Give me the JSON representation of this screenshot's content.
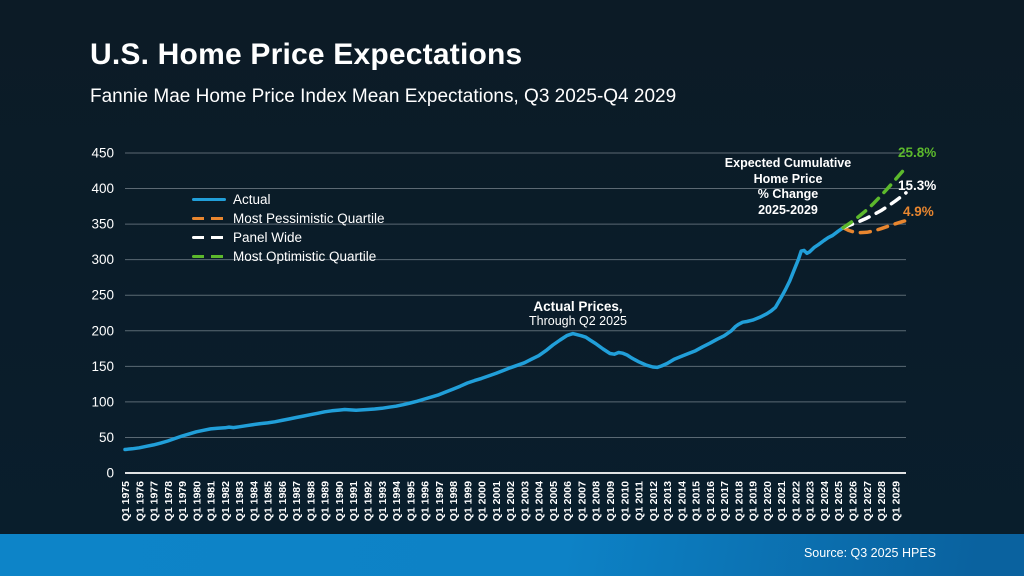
{
  "slide": {
    "title": "U.S. Home Price Expectations",
    "subtitle": "Fannie Mae Home Price Index Mean Expectations, Q3 2025-Q4 2029",
    "source": "Source: Q3 2025 HPES"
  },
  "colors": {
    "background_top": "#0c1b26",
    "background_bottom": "#091e2d",
    "footer_blue_left": "#0d84c8",
    "footer_blue_right": "#0a629f",
    "actual": "#219fd9",
    "pessimistic": "#e8862f",
    "panel": "#ffffff",
    "optimistic": "#5cb92c",
    "gridline": "rgba(190,200,206,0.45)",
    "axis_line": "#ffffff",
    "text": "#ffffff"
  },
  "chart_data": {
    "type": "line",
    "title": "U.S. Home Price Expectations",
    "subtitle": "Fannie Mae Home Price Index Mean Expectations, Q3 2025-Q4 2029",
    "xlabel": "",
    "ylabel": "",
    "ylim": [
      0,
      450
    ],
    "grid": true,
    "legend_position": "upper-left",
    "y_ticks": [
      0,
      50,
      100,
      150,
      200,
      250,
      300,
      350,
      400,
      450
    ],
    "x_ticks": [
      "Q1 1975",
      "Q1 1976",
      "Q1 1977",
      "Q1 1978",
      "Q1 1979",
      "Q1 1980",
      "Q1 1981",
      "Q1 1982",
      "Q1 1983",
      "Q1 1984",
      "Q1 1985",
      "Q1 1986",
      "Q1 1987",
      "Q1 1988",
      "Q1 1989",
      "Q1 1990",
      "Q1 1991",
      "Q1 1992",
      "Q1 1993",
      "Q1 1994",
      "Q1 1995",
      "Q1 1996",
      "Q1 1997",
      "Q1 1998",
      "Q1 1999",
      "Q1 2000",
      "Q1 2001",
      "Q1 2002",
      "Q1 2003",
      "Q1 2004",
      "Q1 2005",
      "Q1 2006",
      "Q1 2007",
      "Q1 2008",
      "Q1 2009",
      "Q1 2010",
      "Q1 2011",
      "Q1 2012",
      "Q1 2013",
      "Q1 2014",
      "Q1 2015",
      "Q1 2016",
      "Q1 2017",
      "Q1 2018",
      "Q1 2019",
      "Q1 2020",
      "Q1 2021",
      "Q1 2022",
      "Q1 2023",
      "Q1 2024",
      "Q1 2025",
      "Q1 2026",
      "Q1 2027",
      "Q1 2028",
      "Q1 2029"
    ],
    "x_start_year": 1975,
    "series": [
      {
        "name": "Actual",
        "style": "solid",
        "color_key": "actual",
        "end_label": "",
        "points": [
          [
            1975.0,
            33
          ],
          [
            1975.5,
            34
          ],
          [
            1976.0,
            35.5
          ],
          [
            1976.5,
            37.5
          ],
          [
            1977.0,
            39.5
          ],
          [
            1977.5,
            42
          ],
          [
            1978.0,
            45
          ],
          [
            1978.5,
            48.5
          ],
          [
            1979.0,
            52
          ],
          [
            1979.5,
            55
          ],
          [
            1980.0,
            58
          ],
          [
            1980.5,
            60
          ],
          [
            1981.0,
            62
          ],
          [
            1981.5,
            63
          ],
          [
            1982.0,
            63.5
          ],
          [
            1982.3,
            64.5
          ],
          [
            1982.6,
            63.8
          ],
          [
            1983.0,
            65
          ],
          [
            1983.5,
            66.5
          ],
          [
            1984.0,
            68
          ],
          [
            1984.5,
            69.5
          ],
          [
            1985.0,
            70.5
          ],
          [
            1985.5,
            72
          ],
          [
            1986.0,
            74
          ],
          [
            1986.5,
            76
          ],
          [
            1987.0,
            78
          ],
          [
            1987.5,
            80
          ],
          [
            1988.0,
            82
          ],
          [
            1988.5,
            84
          ],
          [
            1989.0,
            86
          ],
          [
            1989.5,
            87.5
          ],
          [
            1990.0,
            88.5
          ],
          [
            1990.4,
            89.3
          ],
          [
            1990.8,
            88.8
          ],
          [
            1991.2,
            88.3
          ],
          [
            1991.6,
            88.8
          ],
          [
            1992.0,
            89.3
          ],
          [
            1992.5,
            90
          ],
          [
            1993.0,
            91
          ],
          [
            1993.5,
            92.5
          ],
          [
            1994.0,
            94
          ],
          [
            1994.5,
            96
          ],
          [
            1995.0,
            98.5
          ],
          [
            1995.5,
            101
          ],
          [
            1996.0,
            104
          ],
          [
            1996.5,
            107
          ],
          [
            1997.0,
            110
          ],
          [
            1997.5,
            114
          ],
          [
            1998.0,
            118
          ],
          [
            1998.5,
            122
          ],
          [
            1999.0,
            126.5
          ],
          [
            1999.5,
            130
          ],
          [
            2000.0,
            133
          ],
          [
            2000.5,
            136.5
          ],
          [
            2001.0,
            140
          ],
          [
            2001.5,
            144
          ],
          [
            2002.0,
            148
          ],
          [
            2002.5,
            151.5
          ],
          [
            2003.0,
            155
          ],
          [
            2003.5,
            160
          ],
          [
            2004.0,
            165
          ],
          [
            2004.5,
            172
          ],
          [
            2005.0,
            180
          ],
          [
            2005.5,
            187
          ],
          [
            2006.0,
            193.5
          ],
          [
            2006.4,
            196
          ],
          [
            2006.7,
            194.5
          ],
          [
            2007.0,
            193
          ],
          [
            2007.3,
            191
          ],
          [
            2007.6,
            187
          ],
          [
            2008.0,
            182
          ],
          [
            2008.5,
            174.5
          ],
          [
            2009.0,
            168
          ],
          [
            2009.3,
            167
          ],
          [
            2009.6,
            169.5
          ],
          [
            2009.9,
            168.5
          ],
          [
            2010.2,
            166
          ],
          [
            2010.5,
            162
          ],
          [
            2011.0,
            156.5
          ],
          [
            2011.5,
            152
          ],
          [
            2012.0,
            149
          ],
          [
            2012.3,
            148.5
          ],
          [
            2012.6,
            150.5
          ],
          [
            2013.0,
            154
          ],
          [
            2013.5,
            160
          ],
          [
            2014.0,
            164
          ],
          [
            2014.5,
            168
          ],
          [
            2015.0,
            172
          ],
          [
            2015.5,
            177.5
          ],
          [
            2016.0,
            182.5
          ],
          [
            2016.5,
            188
          ],
          [
            2017.0,
            193
          ],
          [
            2017.5,
            200
          ],
          [
            2017.8,
            206
          ],
          [
            2018.0,
            209
          ],
          [
            2018.3,
            212
          ],
          [
            2018.6,
            213
          ],
          [
            2019.0,
            215
          ],
          [
            2019.5,
            219
          ],
          [
            2020.0,
            224
          ],
          [
            2020.3,
            228
          ],
          [
            2020.6,
            233
          ],
          [
            2021.0,
            247
          ],
          [
            2021.3,
            258
          ],
          [
            2021.6,
            270
          ],
          [
            2022.0,
            290
          ],
          [
            2022.2,
            300
          ],
          [
            2022.4,
            312
          ],
          [
            2022.6,
            313
          ],
          [
            2022.8,
            309
          ],
          [
            2023.0,
            311
          ],
          [
            2023.3,
            317
          ],
          [
            2023.6,
            321
          ],
          [
            2024.0,
            327
          ],
          [
            2024.3,
            331
          ],
          [
            2024.6,
            334
          ],
          [
            2025.0,
            340
          ],
          [
            2025.35,
            345
          ]
        ]
      },
      {
        "name": "Most Pessimistic Quartile",
        "style": "dashed",
        "color_key": "pessimistic",
        "end_label": "4.9%",
        "points": [
          [
            2025.35,
            345
          ],
          [
            2025.75,
            341
          ],
          [
            2026.0,
            339.5
          ],
          [
            2026.5,
            338
          ],
          [
            2027.0,
            338.5
          ],
          [
            2027.5,
            340.5
          ],
          [
            2028.0,
            343.5
          ],
          [
            2028.5,
            347
          ],
          [
            2029.0,
            350.5
          ],
          [
            2029.5,
            353.5
          ],
          [
            2029.75,
            355
          ]
        ]
      },
      {
        "name": "Panel Wide",
        "style": "dashed",
        "color_key": "panel",
        "end_label": "15.3%",
        "points": [
          [
            2025.35,
            345
          ],
          [
            2026.0,
            350
          ],
          [
            2026.5,
            354
          ],
          [
            2027.0,
            358.5
          ],
          [
            2027.5,
            363.5
          ],
          [
            2028.0,
            369
          ],
          [
            2028.5,
            375.5
          ],
          [
            2029.0,
            382.5
          ],
          [
            2029.5,
            390
          ],
          [
            2029.75,
            394
          ]
        ]
      },
      {
        "name": "Most Optimistic Quartile",
        "style": "dashed",
        "color_key": "optimistic",
        "end_label": "25.8%",
        "points": [
          [
            2025.35,
            345
          ],
          [
            2026.0,
            354
          ],
          [
            2026.5,
            361.5
          ],
          [
            2027.0,
            370
          ],
          [
            2027.5,
            379.5
          ],
          [
            2028.0,
            390
          ],
          [
            2028.5,
            401
          ],
          [
            2029.0,
            412.5
          ],
          [
            2029.5,
            424
          ],
          [
            2029.75,
            430
          ]
        ]
      }
    ],
    "annotations": {
      "actual_prices": {
        "line1": "Actual Prices,",
        "line2": "Through Q2 2025"
      },
      "expected_change": {
        "lines": [
          "Expected Cumulative",
          "Home Price",
          "% Change",
          "2025-2029"
        ]
      }
    }
  }
}
